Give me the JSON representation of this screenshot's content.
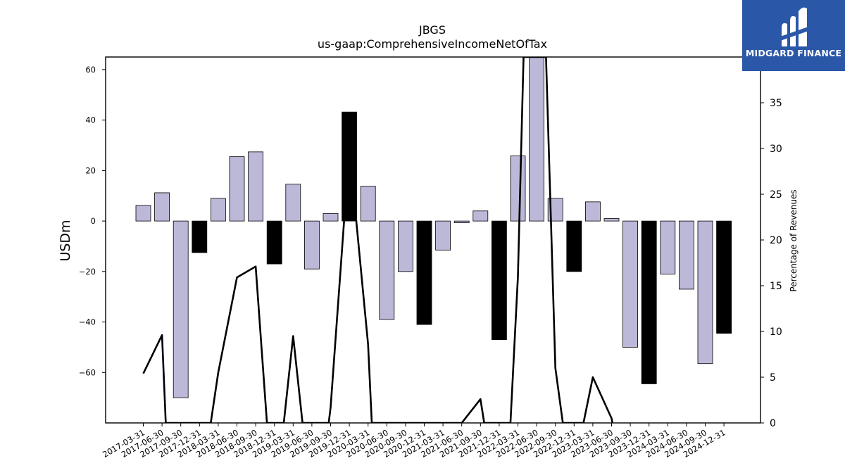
{
  "chart_data": {
    "type": "bar",
    "title": "JBGS",
    "subtitle": "us-gaap:ComprehensiveIncomeNetOfTax",
    "ylabel": "USDm",
    "y2label": "Percentage of Revenues",
    "ylim": [
      -80,
      65
    ],
    "y2lim": [
      0,
      40
    ],
    "yticks": [
      -60,
      -40,
      -20,
      0,
      20,
      40,
      60
    ],
    "y2ticks": [
      0,
      5,
      10,
      15,
      20,
      25,
      30,
      35
    ],
    "categories": [
      "2017-03-31",
      "2017-06-30",
      "2017-09-30",
      "2017-12-31",
      "2018-03-31",
      "2018-06-30",
      "2018-09-30",
      "2018-12-31",
      "2019-03-31",
      "2019-06-30",
      "2019-09-30",
      "2019-12-31",
      "2020-03-31",
      "2020-06-30",
      "2020-09-30",
      "2020-12-31",
      "2021-03-31",
      "2021-06-30",
      "2021-09-30",
      "2021-12-31",
      "2022-03-31",
      "2022-06-30",
      "2022-09-30",
      "2022-12-31",
      "2023-03-31",
      "2023-06-30",
      "2023-09-30",
      "2023-12-31",
      "2024-03-31",
      "2024-06-30",
      "2024-09-30",
      "2024-12-31"
    ],
    "series": [
      {
        "kind": "bar",
        "values": [
          6.2,
          11.2,
          -70,
          -12.5,
          9,
          25.5,
          27.4,
          -17,
          14.6,
          -19,
          3,
          43.2,
          13.8,
          -39,
          -20,
          -41,
          -11.5,
          -0.7,
          4,
          -47,
          25.8,
          70,
          9,
          -20,
          7.6,
          1,
          -50,
          -64.5,
          -21,
          -27,
          -56.5,
          -44.5
        ],
        "colors": [
          "#bcb8d8",
          "#bcb8d8",
          "#bcb8d8",
          "#000000",
          "#bcb8d8",
          "#bcb8d8",
          "#bcb8d8",
          "#000000",
          "#bcb8d8",
          "#bcb8d8",
          "#bcb8d8",
          "#000000",
          "#bcb8d8",
          "#bcb8d8",
          "#bcb8d8",
          "#000000",
          "#bcb8d8",
          "#bcb8d8",
          "#bcb8d8",
          "#000000",
          "#bcb8d8",
          "#bcb8d8",
          "#bcb8d8",
          "#000000",
          "#bcb8d8",
          "#bcb8d8",
          "#bcb8d8",
          "#000000",
          "#bcb8d8",
          "#bcb8d8",
          "#bcb8d8",
          "#000000"
        ]
      },
      {
        "kind": "line",
        "axis": "right",
        "color": "#000000",
        "points": [
          [
            0,
            5.4
          ],
          [
            1,
            9.6
          ],
          [
            1.2,
            0
          ],
          [
            3.6,
            0
          ],
          [
            4,
            5.5
          ],
          [
            5,
            15.9
          ],
          [
            6,
            17.1
          ],
          [
            6.6,
            0
          ],
          [
            7.5,
            0
          ],
          [
            8,
            9.5
          ],
          [
            8.5,
            0
          ],
          [
            9.9,
            0
          ],
          [
            10,
            1.7
          ],
          [
            11,
            30
          ],
          [
            12,
            8.6
          ],
          [
            12.2,
            0
          ],
          [
            17,
            0
          ],
          [
            18,
            2.6
          ],
          [
            18.2,
            0
          ],
          [
            19.6,
            0
          ],
          [
            20,
            16
          ],
          [
            20.3,
            40
          ],
          [
            21.5,
            40
          ],
          [
            22,
            6
          ],
          [
            22.4,
            0
          ],
          [
            23.5,
            0
          ],
          [
            24,
            5
          ],
          [
            25,
            0.5
          ],
          [
            25.05,
            0
          ]
        ]
      }
    ]
  },
  "logo": {
    "text": "MIDGARD FINANCE",
    "bg_color": "#2b57a8"
  }
}
